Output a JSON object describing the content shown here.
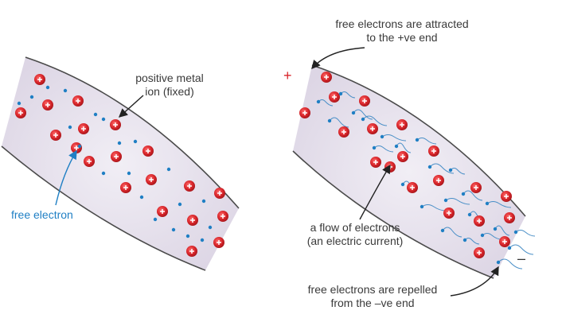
{
  "labels": {
    "positive_ion": [
      "positive metal",
      "ion (fixed)"
    ],
    "free_electron": "free electron",
    "attracted": [
      "free electrons are attracted",
      "to the +ve end"
    ],
    "flow": [
      "a flow of electrons",
      "(an electric current)"
    ],
    "repelled": [
      "free electrons are repelled",
      "from the –ve end"
    ],
    "plus_sign": "+",
    "minus_sign": "–"
  },
  "colors": {
    "wire_fill": "#e6e1ec",
    "wire_edge": "#4a4a4a",
    "ion_red": "#d8262b",
    "electron_blue": "#1f7fc4",
    "plus_red": "#d8262b",
    "text_blue": "#1f7fc4"
  },
  "icons": [
    "positive-ion-icon",
    "electron-dot-icon",
    "pointer-arrow-icon"
  ]
}
